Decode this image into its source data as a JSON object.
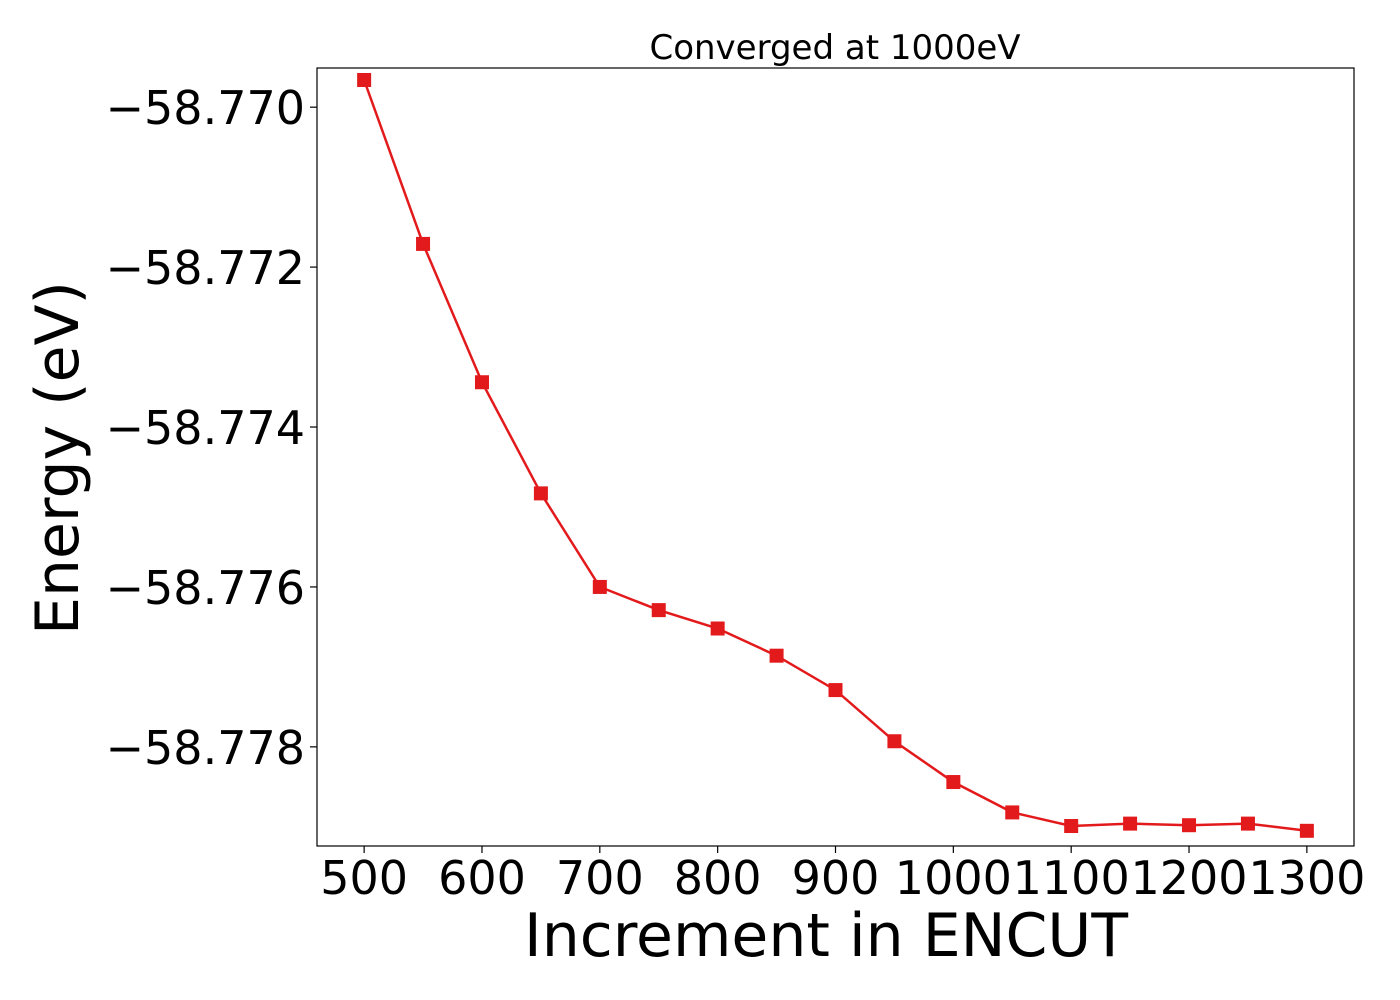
{
  "chart_data": {
    "type": "line",
    "title": "Converged at 1000eV",
    "xlabel": "Increment in ENCUT",
    "ylabel": "Energy (eV)",
    "xlim": [
      460,
      1340
    ],
    "ylim": [
      -58.77924,
      -58.76951
    ],
    "x_ticks": [
      500,
      600,
      700,
      800,
      900,
      1000,
      1100,
      1200,
      1300
    ],
    "x_tick_labels": [
      "500",
      "600",
      "700",
      "800",
      "900",
      "1000",
      "1100",
      "1200",
      "1300"
    ],
    "y_ticks": [
      -58.77,
      -58.772,
      -58.774,
      -58.776,
      -58.778
    ],
    "y_tick_labels": [
      "−58.770",
      "−58.772",
      "−58.774",
      "−58.776",
      "−58.778"
    ],
    "grid": false,
    "series": [
      {
        "color": "#e31a1c",
        "marker": "square",
        "x": [
          500,
          550,
          600,
          650,
          700,
          750,
          800,
          850,
          900,
          950,
          1000,
          1050,
          1100,
          1150,
          1200,
          1250,
          1300
        ],
        "y": [
          -58.76966,
          -58.77171,
          -58.77344,
          -58.77483,
          -58.776,
          -58.77629,
          -58.77652,
          -58.77686,
          -58.77729,
          -58.77793,
          -58.77844,
          -58.77882,
          -58.77899,
          -58.77896,
          -58.77898,
          -58.77896,
          -58.77905
        ]
      }
    ]
  }
}
